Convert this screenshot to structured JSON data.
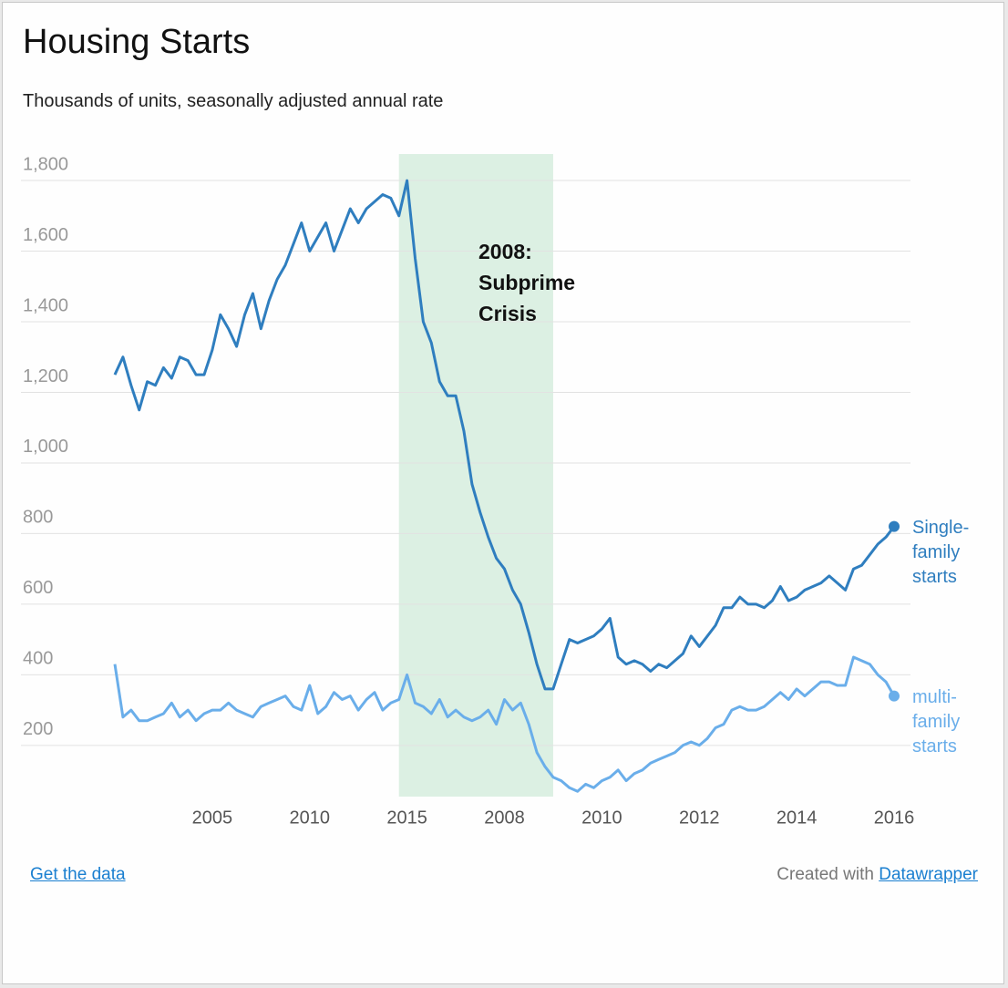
{
  "chart_data": {
    "type": "line",
    "title": "Housing Starts",
    "subtitle": "Thousands of units, seasonally adjusted annual rate",
    "xlim": [
      0,
      96
    ],
    "xticks": [
      {
        "value": 12,
        "label": "2005"
      },
      {
        "value": 24,
        "label": "2010"
      },
      {
        "value": 36,
        "label": "2015"
      },
      {
        "value": 48,
        "label": "2008"
      },
      {
        "value": 60,
        "label": "2010"
      },
      {
        "value": 72,
        "label": "2012"
      },
      {
        "value": 84,
        "label": "2014"
      },
      {
        "value": 96,
        "label": "2016"
      }
    ],
    "ylim": [
      55,
      1875
    ],
    "yticks": [
      200,
      {
        "value": 400,
        "label": "400"
      },
      {
        "value": 600,
        "label": "600"
      },
      {
        "value": 800,
        "label": "800"
      },
      {
        "value": 1000,
        "label": "1,000"
      },
      {
        "value": 1200,
        "label": "1,200"
      },
      {
        "value": 1400,
        "label": "1,400"
      },
      {
        "value": 1600,
        "label": "1,600"
      },
      {
        "value": 1800,
        "label": "1,800"
      }
    ],
    "grid": true,
    "highlight": {
      "xlim": [
        35,
        54
      ],
      "color": "#dcf0e3",
      "text": "2008: Subprime Crisis"
    },
    "series": [
      {
        "name": "Single-family starts",
        "color": "#2f7ebf",
        "values": [
          1250,
          1300,
          1220,
          1150,
          1230,
          1220,
          1270,
          1240,
          1300,
          1290,
          1250,
          1250,
          1320,
          1420,
          1380,
          1330,
          1420,
          1480,
          1380,
          1460,
          1520,
          1560,
          1620,
          1680,
          1600,
          1640,
          1680,
          1600,
          1660,
          1720,
          1680,
          1720,
          1740,
          1760,
          1750,
          1700,
          1800,
          1580,
          1400,
          1340,
          1230,
          1190,
          1190,
          1090,
          940,
          860,
          790,
          730,
          700,
          640,
          600,
          520,
          430,
          360,
          360,
          430,
          500,
          490,
          500,
          510,
          530,
          560,
          450,
          430,
          440,
          430,
          410,
          430,
          420,
          440,
          460,
          510,
          480,
          510,
          540,
          590,
          590,
          620,
          600,
          600,
          590,
          610,
          650,
          610,
          620,
          640,
          650,
          660,
          680,
          660,
          640,
          700,
          710,
          740,
          770,
          790,
          820
        ]
      },
      {
        "name": "multi-family starts",
        "color": "#6aaeea",
        "values": [
          430,
          280,
          300,
          270,
          270,
          280,
          290,
          320,
          280,
          300,
          270,
          290,
          300,
          300,
          320,
          300,
          290,
          280,
          310,
          320,
          330,
          340,
          310,
          300,
          370,
          290,
          310,
          350,
          330,
          340,
          300,
          330,
          350,
          300,
          320,
          330,
          400,
          320,
          310,
          290,
          330,
          280,
          300,
          280,
          270,
          280,
          300,
          260,
          330,
          300,
          320,
          260,
          180,
          140,
          110,
          100,
          80,
          70,
          90,
          80,
          100,
          110,
          130,
          100,
          120,
          130,
          150,
          160,
          170,
          180,
          200,
          210,
          200,
          220,
          250,
          260,
          300,
          310,
          300,
          300,
          310,
          330,
          350,
          330,
          360,
          340,
          360,
          380,
          380,
          370,
          370,
          450,
          440,
          430,
          400,
          380,
          340
        ]
      }
    ],
    "footer": {
      "link": "Get the data",
      "credit": "Created with",
      "credit_link": "Datawrapper"
    }
  }
}
